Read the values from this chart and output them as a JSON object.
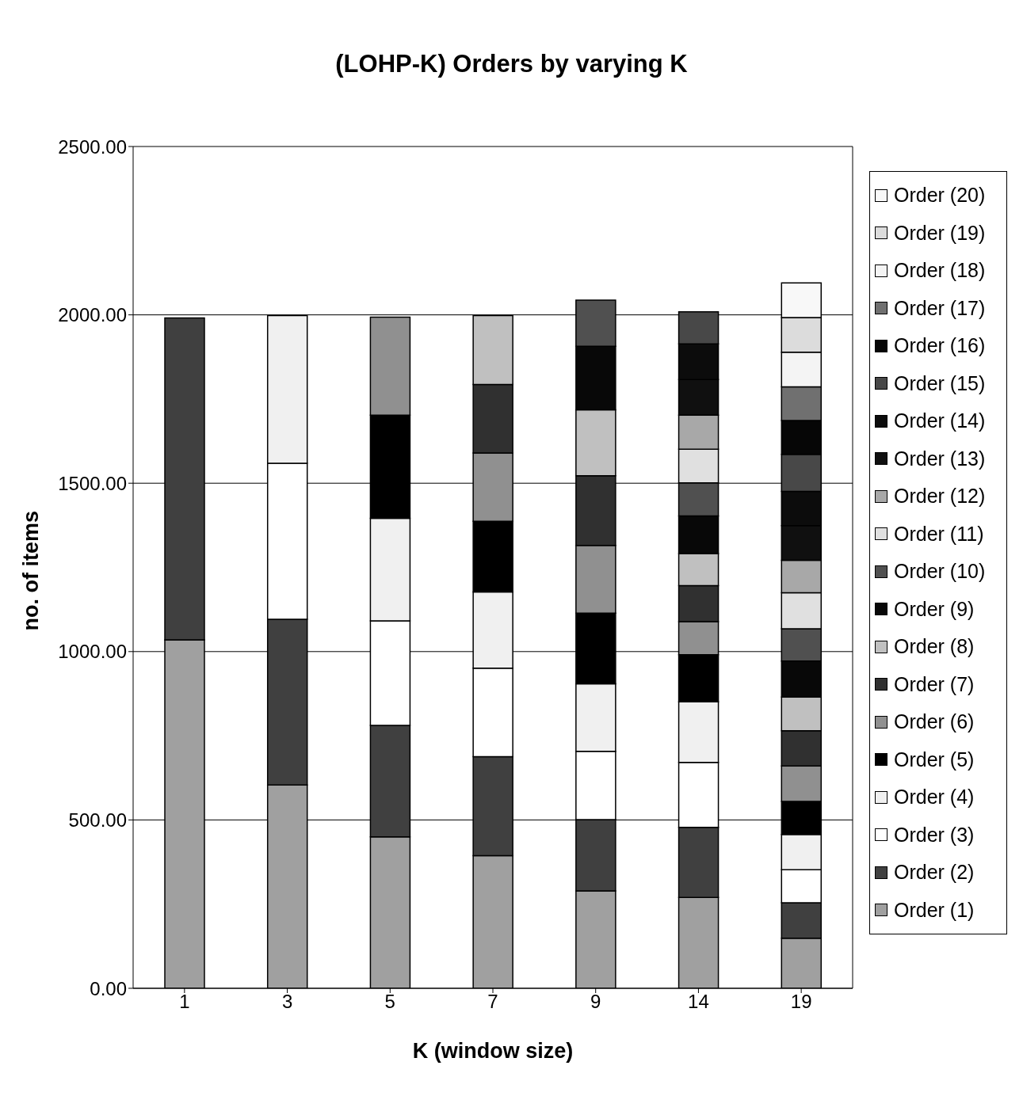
{
  "chart_data": {
    "type": "bar",
    "title": "(LOHP-K) Orders by varying K",
    "xlabel": "K (window size)",
    "ylabel": "no. of items",
    "categories": [
      "1",
      "3",
      "5",
      "7",
      "9",
      "14",
      "19"
    ],
    "stacked": true,
    "grid": "y",
    "legend": "right",
    "ylim": [
      0,
      2500
    ],
    "yticks": [
      {
        "value": 0,
        "label": "0.00"
      },
      {
        "value": 500,
        "label": "500.00"
      },
      {
        "value": 1000,
        "label": "1000.00"
      },
      {
        "value": 1500,
        "label": "1500.00"
      },
      {
        "value": 2000,
        "label": "2000.00"
      },
      {
        "value": 2500,
        "label": "2500.00"
      }
    ],
    "series": [
      {
        "name": "Order (1)",
        "color": "#a0a0a0",
        "values": [
          1035,
          604,
          450,
          394,
          289,
          270,
          149
        ]
      },
      {
        "name": "Order (2)",
        "color": "#404040",
        "values": [
          956,
          492,
          331,
          294,
          212,
          208,
          105
        ]
      },
      {
        "name": "Order (3)",
        "color": "#ffffff",
        "values": [
          null,
          463,
          310,
          263,
          203,
          193,
          98
        ]
      },
      {
        "name": "Order (4)",
        "color": "#f0f0f0",
        "values": [
          null,
          439,
          305,
          226,
          200,
          180,
          105
        ]
      },
      {
        "name": "Order (5)",
        "color": "#000000",
        "values": [
          null,
          null,
          306,
          210,
          210,
          140,
          98
        ]
      },
      {
        "name": "Order (6)",
        "color": "#909090",
        "values": [
          null,
          null,
          291,
          203,
          201,
          98,
          105
        ]
      },
      {
        "name": "Order (7)",
        "color": "#303030",
        "values": [
          null,
          null,
          null,
          203,
          207,
          107,
          105
        ]
      },
      {
        "name": "Order (8)",
        "color": "#c0c0c0",
        "values": [
          null,
          null,
          null,
          205,
          196,
          95,
          100
        ]
      },
      {
        "name": "Order (9)",
        "color": "#080808",
        "values": [
          null,
          null,
          null,
          null,
          189,
          112,
          107
        ]
      },
      {
        "name": "Order (10)",
        "color": "#505050",
        "values": [
          null,
          null,
          null,
          null,
          137,
          98,
          96
        ]
      },
      {
        "name": "Order (11)",
        "color": "#e0e0e0",
        "values": [
          null,
          null,
          null,
          null,
          null,
          100,
          107
        ]
      },
      {
        "name": "Order (12)",
        "color": "#a8a8a8",
        "values": [
          null,
          null,
          null,
          null,
          null,
          101,
          96
        ]
      },
      {
        "name": "Order (13)",
        "color": "#101010",
        "values": [
          null,
          null,
          null,
          null,
          null,
          106,
          103
        ]
      },
      {
        "name": "Order (14)",
        "color": "#0c0c0c",
        "values": [
          null,
          null,
          null,
          null,
          null,
          106,
          102
        ]
      },
      {
        "name": "Order (15)",
        "color": "#484848",
        "values": [
          null,
          null,
          null,
          null,
          null,
          95,
          110
        ]
      },
      {
        "name": "Order (16)",
        "color": "#060606",
        "values": [
          null,
          null,
          null,
          null,
          null,
          null,
          100
        ]
      },
      {
        "name": "Order (17)",
        "color": "#707070",
        "values": [
          null,
          null,
          null,
          null,
          null,
          null,
          100
        ]
      },
      {
        "name": "Order (18)",
        "color": "#f4f4f4",
        "values": [
          null,
          null,
          null,
          null,
          null,
          null,
          103
        ]
      },
      {
        "name": "Order (19)",
        "color": "#dcdcdc",
        "values": [
          null,
          null,
          null,
          null,
          null,
          null,
          103
        ]
      },
      {
        "name": "Order (20)",
        "color": "#f8f8f8",
        "values": [
          null,
          null,
          null,
          null,
          null,
          null,
          103
        ]
      }
    ]
  }
}
